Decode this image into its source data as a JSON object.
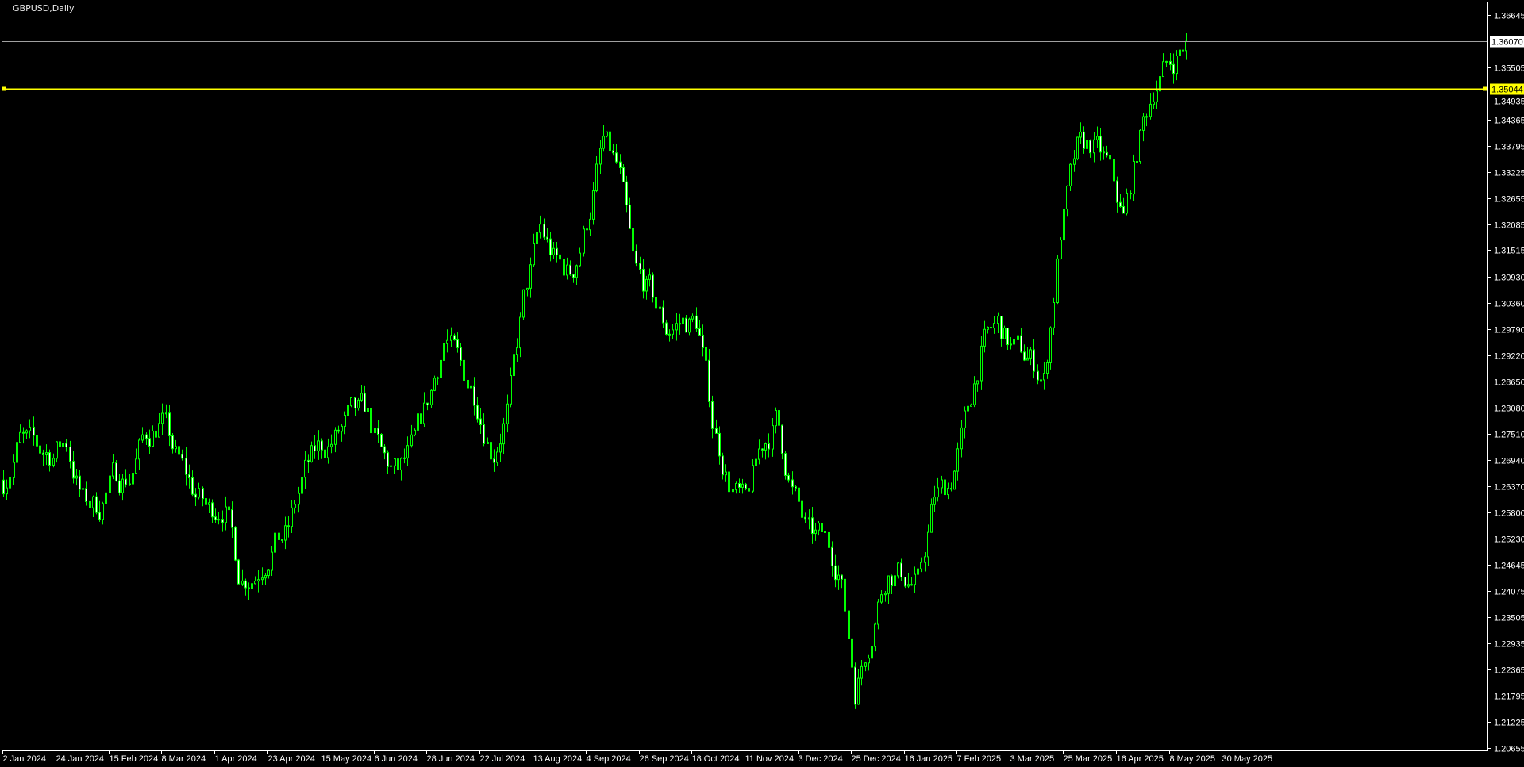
{
  "window": {
    "title": "GBPUSD,Daily"
  },
  "colors": {
    "background": "#000000",
    "frame": "#ffffff",
    "candle_outline": "#00ff00",
    "bull_fill": "#000000",
    "bear_fill": "#ffffff",
    "level_line": "#ffff00",
    "bid_line": "#a0a0a0"
  },
  "chart_data": {
    "type": "candlestick",
    "symbol": "GBPUSD",
    "timeframe": "Daily",
    "grid": false,
    "ylim": [
      1.2045,
      1.3697
    ],
    "y_ticks": [
      "1.36645",
      "1.35505",
      "1.34935",
      "1.34365",
      "1.33795",
      "1.33225",
      "1.32655",
      "1.32085",
      "1.31515",
      "1.30930",
      "1.30360",
      "1.29790",
      "1.29220",
      "1.28650",
      "1.28080",
      "1.27510",
      "1.26940",
      "1.26370",
      "1.25800",
      "1.25230",
      "1.24645",
      "1.24075",
      "1.23505",
      "1.22935",
      "1.22365",
      "1.21795",
      "1.21225",
      "1.20655"
    ],
    "x_ticks": [
      "2 Jan 2024",
      "24 Jan 2024",
      "15 Feb 2024",
      "8 Mar 2024",
      "1 Apr 2024",
      "23 Apr 2024",
      "15 May 2024",
      "6 Jun 2024",
      "28 Jun 2024",
      "22 Jul 2024",
      "13 Aug 2024",
      "4 Sep 2024",
      "26 Sep 2024",
      "18 Oct 2024",
      "11 Nov 2024",
      "3 Dec 2024",
      "25 Dec 2024",
      "16 Jan 2025",
      "7 Feb 2025",
      "3 Mar 2025",
      "25 Mar 2025",
      "16 Apr 2025",
      "8 May 2025",
      "30 May 2025"
    ],
    "weekly_closes_start": "2 Jan 2024",
    "weekly_closes": [
      1.265,
      1.2737,
      1.2714,
      1.2709,
      1.2735,
      1.2603,
      1.2593,
      1.2654,
      1.2661,
      1.2745,
      1.2783,
      1.2694,
      1.2629,
      1.258,
      1.2606,
      1.2442,
      1.2451,
      1.2512,
      1.2531,
      1.2656,
      1.2716,
      1.2741,
      1.2781,
      1.2794,
      1.2694,
      1.2661,
      1.2714,
      1.283,
      1.2966,
      1.2887,
      1.2834,
      1.2714,
      1.2809,
      1.3038,
      1.3194,
      1.3124,
      1.3097,
      1.3216,
      1.3385,
      1.3321,
      1.3097,
      1.3057,
      1.298,
      1.2995,
      1.2993,
      1.2769,
      1.265,
      1.2589,
      1.2718,
      1.2783,
      1.2629,
      1.2525,
      1.2519,
      1.2464,
      1.2195,
      1.2326,
      1.2455,
      1.2445,
      1.2417,
      1.2608,
      1.2644,
      1.2775,
      1.2938,
      1.2987,
      1.2932,
      1.2917,
      1.287,
      1.3186,
      1.336,
      1.3381,
      1.3332,
      1.3216,
      1.3387,
      1.3523,
      1.3559,
      1.3607
    ],
    "horizontal_line": {
      "price": "1.35044"
    },
    "bid_price": "1.36070"
  }
}
